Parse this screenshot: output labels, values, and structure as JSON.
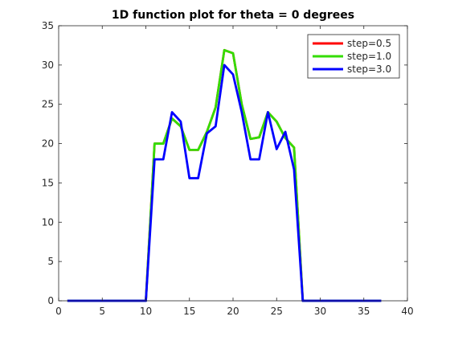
{
  "chart_data": {
    "type": "line",
    "title": "1D function plot for theta = 0 degrees",
    "xlabel": "",
    "ylabel": "",
    "xlim": [
      0,
      40
    ],
    "ylim": [
      0,
      35
    ],
    "xticks": [
      0,
      5,
      10,
      15,
      20,
      25,
      30,
      35,
      40
    ],
    "yticks": [
      0,
      5,
      10,
      15,
      20,
      25,
      30,
      35
    ],
    "grid": false,
    "legend_position": "top-right",
    "series": [
      {
        "name": "step=0.5",
        "color": "#ff0000",
        "x": [
          1,
          2,
          3,
          4,
          5,
          6,
          7,
          8,
          9,
          10,
          11,
          12,
          13,
          14,
          15,
          16,
          17,
          18,
          19,
          20,
          21,
          22,
          23,
          24,
          25,
          26,
          27,
          28,
          29,
          30,
          31,
          32,
          33,
          34,
          35,
          36,
          37
        ],
        "y": [
          0,
          0,
          0,
          0,
          0,
          0,
          0,
          0,
          0,
          0,
          20,
          20,
          23.2,
          22.2,
          19.2,
          19.2,
          21.5,
          24.6,
          31.9,
          31.5,
          25,
          20.6,
          20.8,
          24,
          22.8,
          20.7,
          19.5,
          0,
          0,
          0,
          0,
          0,
          0,
          0,
          0,
          0,
          0
        ]
      },
      {
        "name": "step=1.0",
        "color": "#33dd00",
        "x": [
          1,
          2,
          3,
          4,
          5,
          6,
          7,
          8,
          9,
          10,
          11,
          12,
          13,
          14,
          15,
          16,
          17,
          18,
          19,
          20,
          21,
          22,
          23,
          24,
          25,
          26,
          27,
          28,
          29,
          30,
          31,
          32,
          33,
          34,
          35,
          36,
          37
        ],
        "y": [
          0,
          0,
          0,
          0,
          0,
          0,
          0,
          0,
          0,
          0,
          20,
          20,
          23.2,
          22.2,
          19.2,
          19.2,
          21.5,
          24.6,
          31.9,
          31.5,
          25,
          20.6,
          20.8,
          24,
          22.8,
          20.7,
          19.5,
          0,
          0,
          0,
          0,
          0,
          0,
          0,
          0,
          0,
          0
        ]
      },
      {
        "name": "step=3.0",
        "color": "#0000ff",
        "x": [
          1,
          2,
          3,
          4,
          5,
          6,
          7,
          8,
          9,
          10,
          11,
          12,
          13,
          14,
          15,
          16,
          17,
          18,
          19,
          20,
          21,
          22,
          23,
          24,
          25,
          26,
          27,
          28,
          29,
          30,
          31,
          32,
          33,
          34,
          35,
          36,
          37
        ],
        "y": [
          0,
          0,
          0,
          0,
          0,
          0,
          0,
          0,
          0,
          0,
          18,
          18,
          24,
          22.8,
          15.6,
          15.6,
          21.3,
          22.2,
          30,
          28.8,
          24,
          18,
          18,
          24,
          19.3,
          21.5,
          16.7,
          0,
          0,
          0,
          0,
          0,
          0,
          0,
          0,
          0,
          0
        ]
      }
    ]
  }
}
